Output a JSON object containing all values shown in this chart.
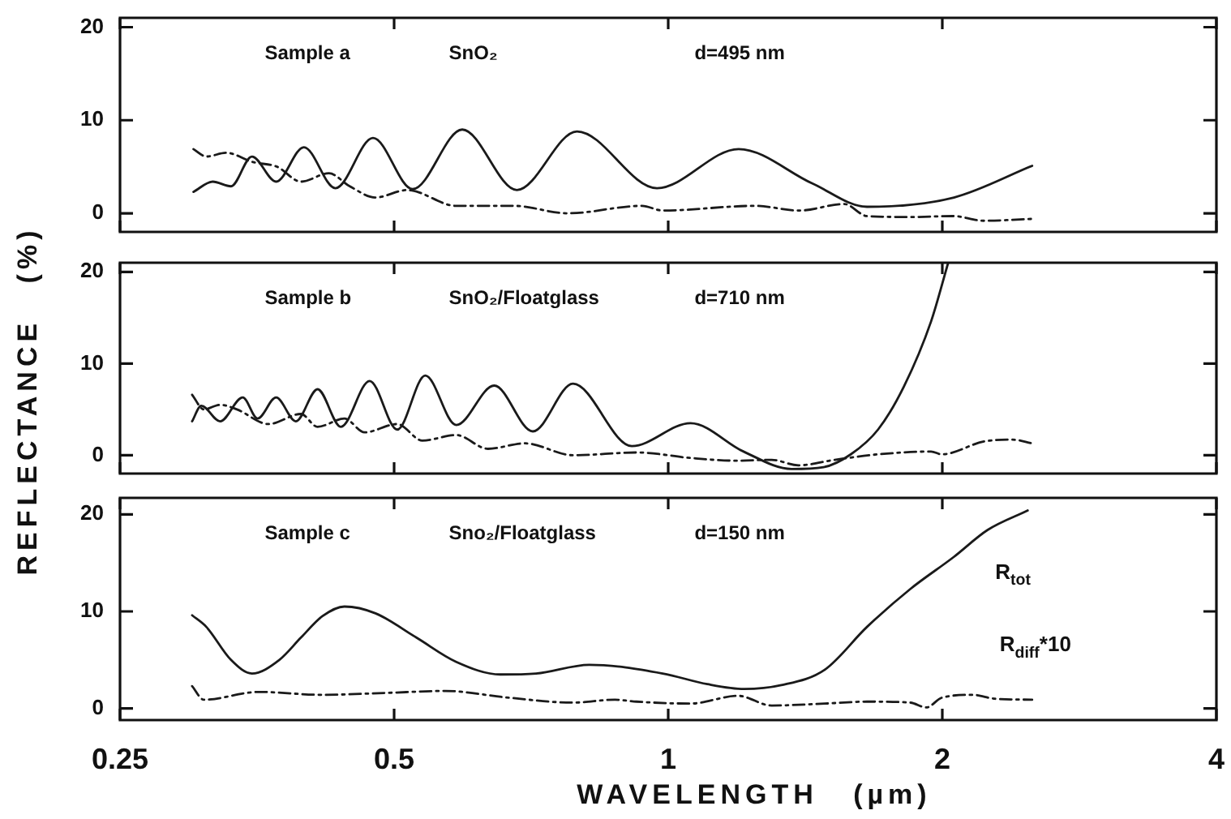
{
  "chart_data": [
    {
      "type": "line",
      "annotations": [
        "Sample a",
        "SnO₂",
        "d=495 nm"
      ],
      "log": "x",
      "tick_labels": "y",
      "xlim": [
        0.25,
        4
      ],
      "xticks": [
        0.25,
        0.5,
        1,
        2,
        4
      ],
      "ylim": [
        -2,
        21
      ],
      "yticks": [
        0,
        10,
        20
      ],
      "series": [
        {
          "color": "#1a1a1a",
          "line_style": "solid",
          "x": [
            0.301,
            0.316,
            0.331,
            0.349,
            0.371,
            0.398,
            0.431,
            0.474,
            0.524,
            0.594,
            0.682,
            0.794,
            0.972,
            1.195,
            1.44,
            1.653,
            2.06,
            2.51
          ],
          "values": [
            2.3,
            3.4,
            2.9,
            6.1,
            3.4,
            7.1,
            2.7,
            8.1,
            2.6,
            9.0,
            2.5,
            8.8,
            2.7,
            6.9,
            3.2,
            0.7,
            1.7,
            5.1
          ]
        },
        {
          "color": "#1a1a1a",
          "line_style": "dashed",
          "x": [
            0.301,
            0.311,
            0.327,
            0.35,
            0.372,
            0.395,
            0.424,
            0.447,
            0.477,
            0.517,
            0.585,
            0.677,
            0.775,
            0.936,
            0.986,
            1.245,
            1.393,
            1.561,
            1.653,
            1.849,
            2.055,
            2.223,
            2.51
          ],
          "values": [
            6.9,
            6.1,
            6.5,
            5.5,
            5.0,
            3.4,
            4.3,
            2.9,
            1.7,
            2.5,
            0.8,
            0.8,
            0,
            0.8,
            0.3,
            0.8,
            0.3,
            1.0,
            -0.3,
            -0.4,
            -0.3,
            -0.8,
            -0.6
          ]
        }
      ]
    },
    {
      "type": "line",
      "annotations": [
        "Sample b",
        "SnO₂/Floatglass",
        "d=710 nm"
      ],
      "ylabel": "REFLECTANCE (%)",
      "log": "x",
      "tick_labels": "y",
      "xlim": [
        0.25,
        4
      ],
      "xticks": [
        0.25,
        0.5,
        1,
        2,
        4
      ],
      "ylim": [
        -2,
        21
      ],
      "yticks": [
        0,
        10,
        20
      ],
      "series": [
        {
          "color": "#1a1a1a",
          "line_style": "solid",
          "x": [
            0.3,
            0.307,
            0.322,
            0.341,
            0.354,
            0.371,
            0.39,
            0.412,
            0.437,
            0.47,
            0.504,
            0.541,
            0.585,
            0.644,
            0.71,
            0.786,
            0.912,
            1.058,
            1.21,
            1.366,
            1.481,
            1.587,
            1.7,
            1.815,
            1.944,
            2.03
          ],
          "values": [
            3.7,
            5.4,
            3.7,
            6.3,
            4.0,
            6.3,
            3.7,
            7.2,
            3.1,
            8.1,
            2.8,
            8.7,
            3.3,
            7.6,
            2.6,
            7.8,
            1.0,
            3.5,
            0.4,
            -1.5,
            -1.3,
            0.1,
            2.8,
            7.5,
            14.6,
            21
          ]
        },
        {
          "color": "#1a1a1a",
          "line_style": "dashed",
          "x": [
            0.3,
            0.309,
            0.322,
            0.336,
            0.364,
            0.395,
            0.412,
            0.441,
            0.464,
            0.504,
            0.537,
            0.585,
            0.634,
            0.696,
            0.786,
            0.925,
            1.058,
            1.193,
            1.299,
            1.39,
            1.524,
            1.7,
            1.944,
            1.997,
            2.222,
            2.388,
            2.51
          ],
          "values": [
            6.6,
            5.0,
            5.5,
            5.0,
            3.4,
            4.5,
            3.1,
            4.0,
            2.5,
            3.4,
            1.6,
            2.2,
            0.7,
            1.3,
            0,
            0.3,
            -0.3,
            -0.6,
            -0.5,
            -1.1,
            -0.5,
            0.1,
            0.4,
            0.1,
            1.5,
            1.7,
            1.3
          ]
        }
      ]
    },
    {
      "type": "line",
      "annotations": [
        "Sample c",
        "Sno₂/Floatglass",
        "d=150 nm"
      ],
      "xlabel": "WAVELENGTH (µm)",
      "log": "x",
      "xlim": [
        0.25,
        4
      ],
      "xticks": [
        0.25,
        0.5,
        1,
        2,
        4
      ],
      "ylim": [
        -1.2,
        21.7
      ],
      "yticks": [
        0,
        10,
        20
      ],
      "series": [
        {
          "name": "R$_{tot}$",
          "color": "#1a1a1a",
          "line_style": "solid",
          "x": [
            0.3,
            0.311,
            0.331,
            0.349,
            0.374,
            0.395,
            0.417,
            0.441,
            0.477,
            0.529,
            0.585,
            0.654,
            0.716,
            0.819,
            0.986,
            1.104,
            1.212,
            1.331,
            1.486,
            1.653,
            1.844,
            2.058,
            2.243,
            2.482
          ],
          "values": [
            9.6,
            8.4,
            5.0,
            3.6,
            5.0,
            7.3,
            9.5,
            10.5,
            9.8,
            7.3,
            4.8,
            3.5,
            3.6,
            4.5,
            3.6,
            2.5,
            2.0,
            2.4,
            4.0,
            8.4,
            12.3,
            15.6,
            18.4,
            20.4
          ]
        },
        {
          "name": "R$_{diff}$*10",
          "color": "#1a1a1a",
          "line_style": "dashed",
          "x": [
            0.3,
            0.309,
            0.355,
            0.417,
            0.49,
            0.569,
            0.669,
            0.786,
            0.874,
            0.923,
            1.058,
            1.193,
            1.299,
            1.486,
            1.653,
            1.844,
            1.921,
            1.997,
            2.161,
            2.283,
            2.51
          ],
          "values": [
            2.3,
            0.9,
            1.7,
            1.4,
            1.6,
            1.8,
            1.1,
            0.6,
            0.9,
            0.7,
            0.5,
            1.3,
            0.3,
            0.5,
            0.7,
            0.6,
            0.1,
            1.1,
            1.4,
            1.0,
            0.9
          ]
        }
      ]
    }
  ]
}
